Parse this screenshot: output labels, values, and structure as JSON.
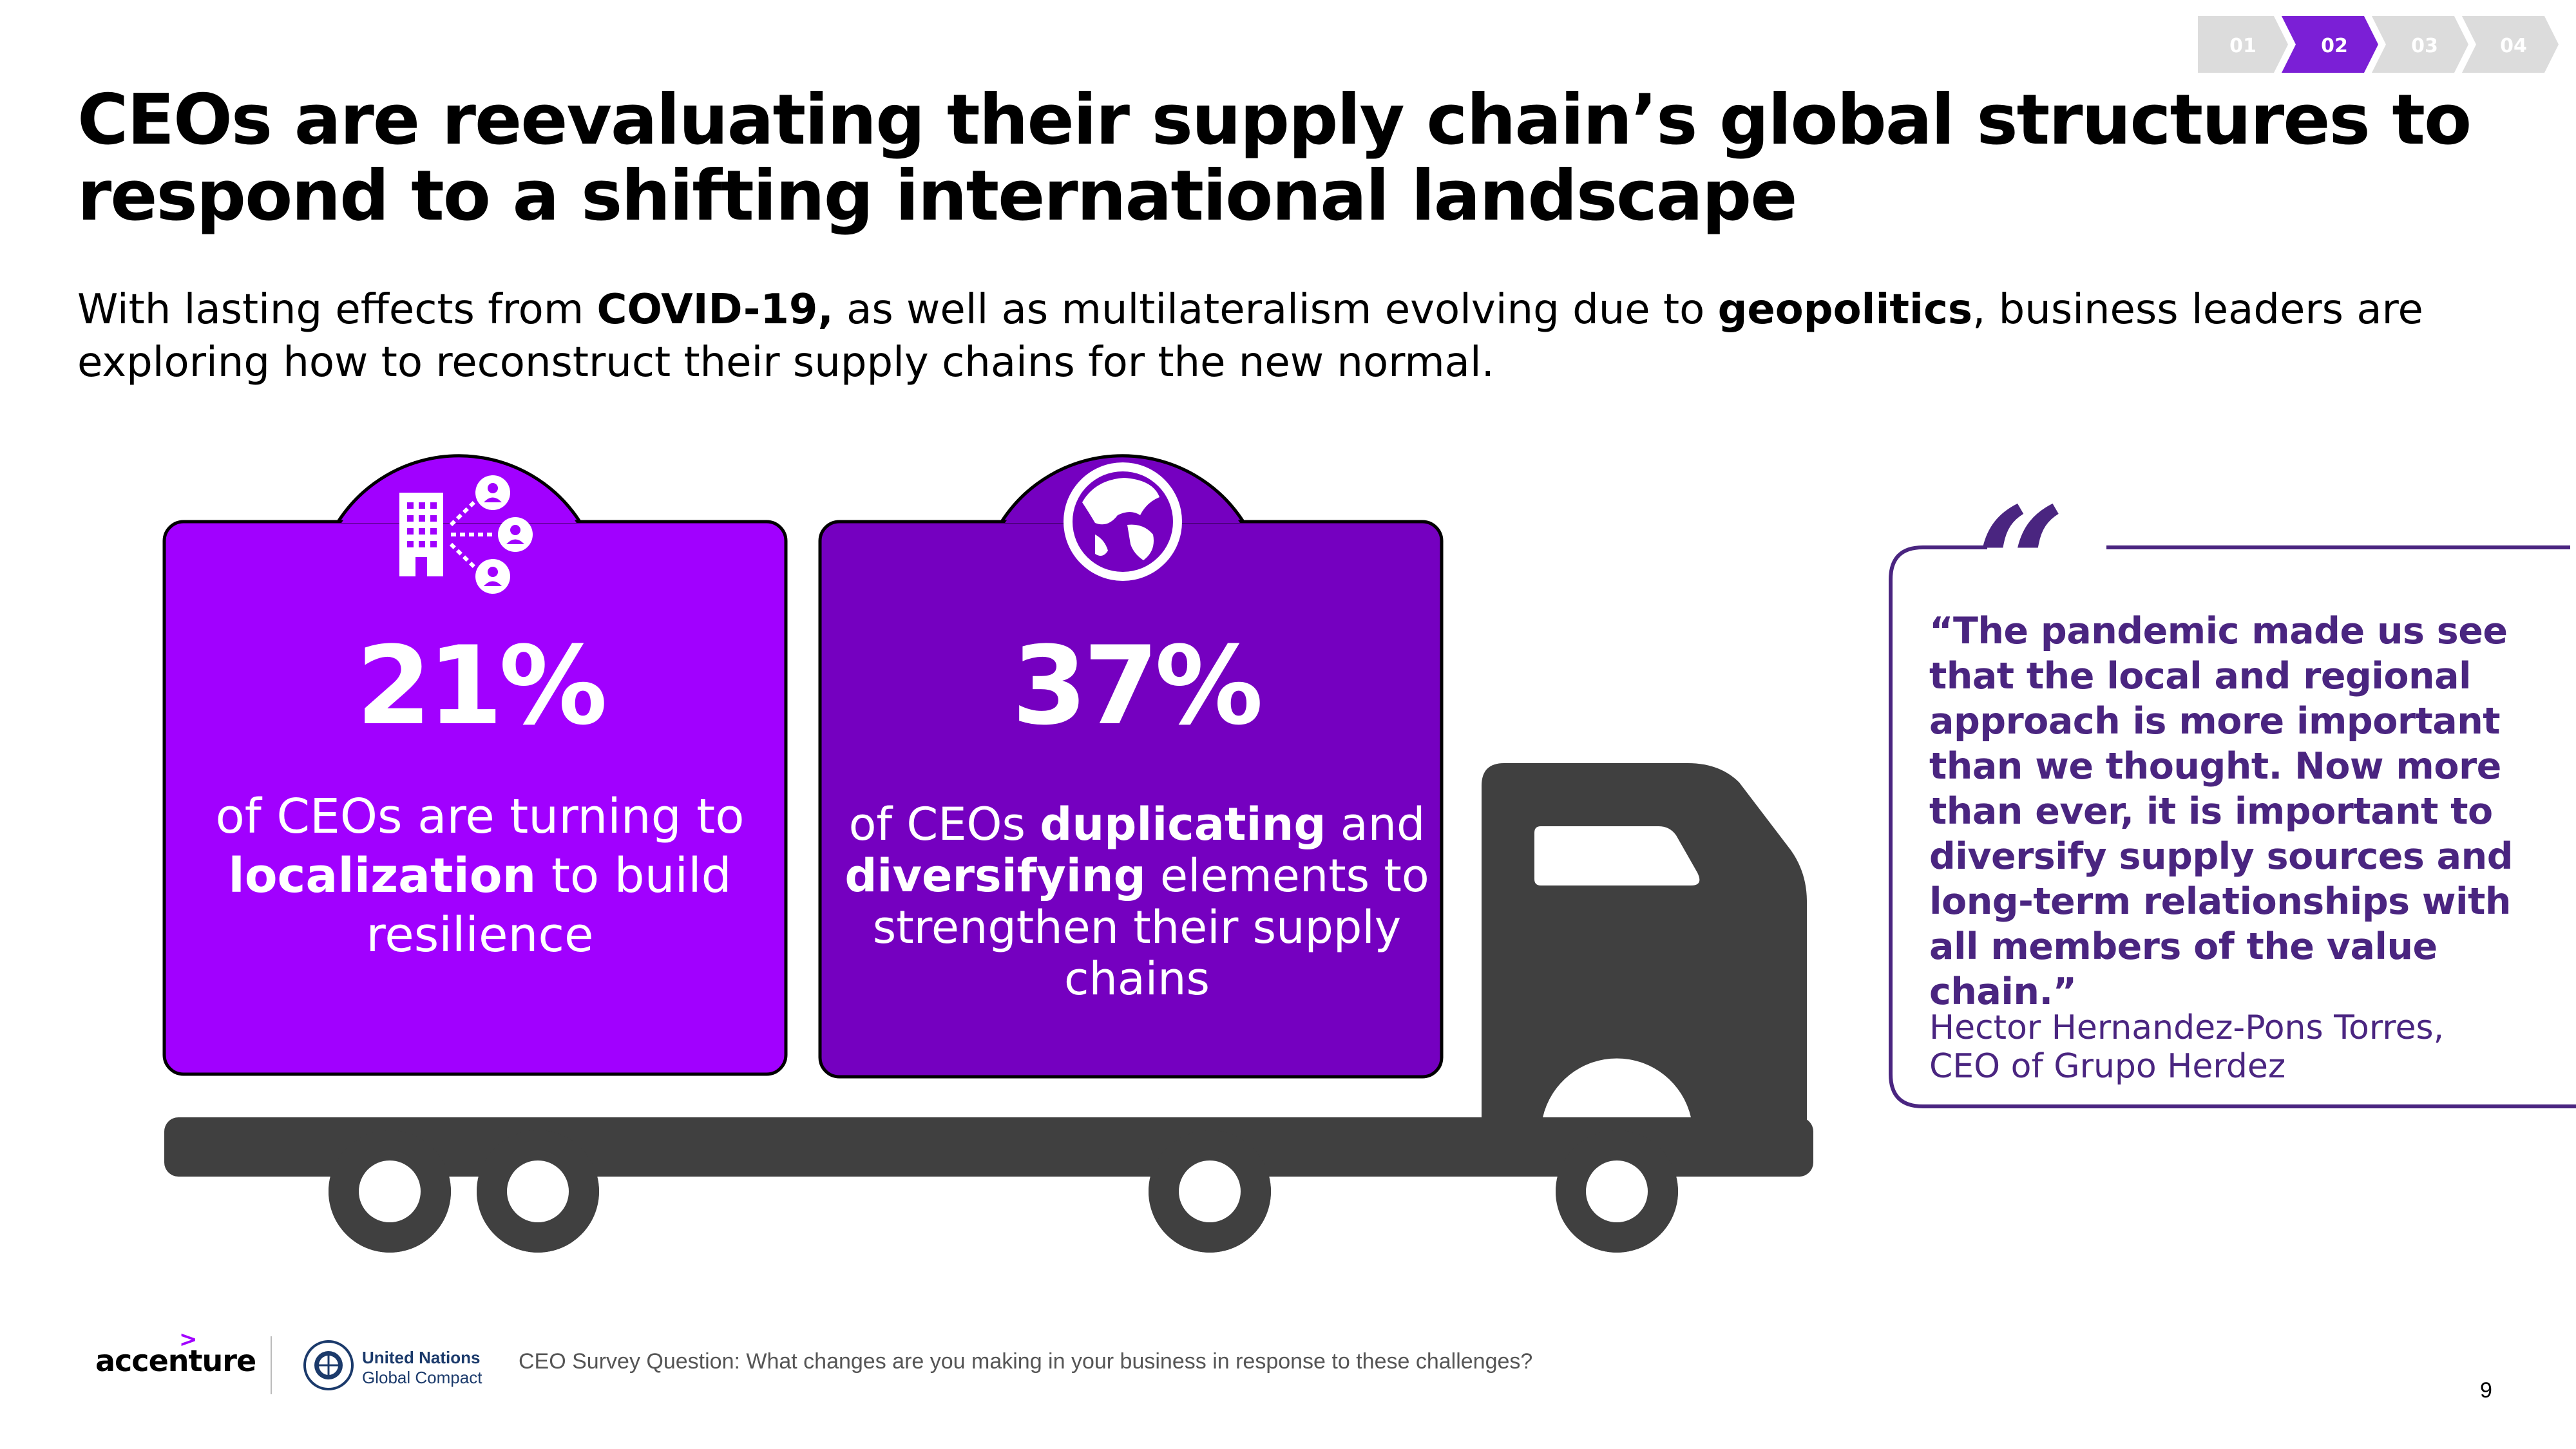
{
  "step_nav": {
    "steps": [
      "01",
      "02",
      "03",
      "04"
    ],
    "active": "02",
    "colors": {
      "active": "#7b1fd6",
      "inactive": "#dcdcdc",
      "inactive_text": "#ffffff"
    }
  },
  "title": "CEOs are reevaluating their supply chain’s global structures to respond to a shifting international landscape",
  "subtitle": {
    "part1": "With lasting effects from ",
    "bold1": "COVID-19,",
    "part2": " as well as multilateralism evolving due to ",
    "bold2": "geopolitics",
    "part3": ", business leaders are exploring how to reconstruct their supply chains for the new normal."
  },
  "cards": [
    {
      "stat": "21%",
      "text_pre": "of CEOs are turning to ",
      "text_bold": "localization",
      "text_post": " to build resilience",
      "icon": "building-network-icon",
      "color": "#a100ff"
    },
    {
      "stat": "37%",
      "text_pre": "of CEOs ",
      "text_bold": "duplicating",
      "text_mid": " and ",
      "text_bold2": "diversifying",
      "text_post": " elements to strengthen their supply chains",
      "icon": "globe-icon",
      "color": "#7500c0"
    }
  ],
  "truck_color": "#404040",
  "quote": {
    "text": "“The pandemic made us see that the local and regional approach is more important than we thought. Now more than ever, it is important to diversify supply sources and long-term relationships with all members of the value chain.”",
    "author_line1": "Hector Hernandez-Pons Torres,",
    "author_line2": "CEO of Grupo Herdez",
    "color": "#4a2580"
  },
  "footer": {
    "accenture": "accenture",
    "un_line1": "United Nations",
    "un_line2": "Global Compact",
    "survey_question": "CEO Survey Question: What changes are you making in your business in response to these challenges?",
    "page": "9"
  }
}
